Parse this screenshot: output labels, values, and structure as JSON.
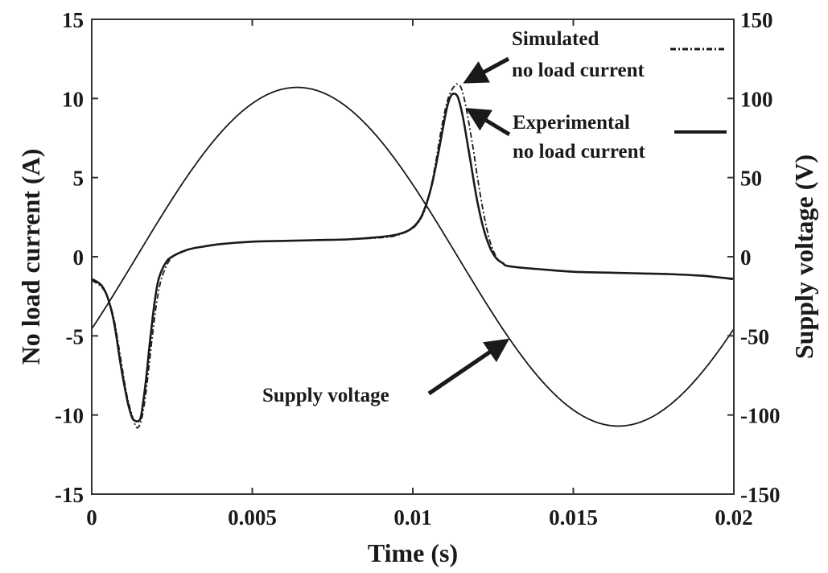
{
  "chart_data": {
    "type": "line",
    "title": "",
    "xlabel": "Time (s)",
    "ylabel_left": "No load current (A)",
    "ylabel_right": "Supply voltage (V)",
    "xlim": [
      0,
      0.02
    ],
    "ylim_left": [
      -15,
      15
    ],
    "ylim_right": [
      -150,
      150
    ],
    "grid": false,
    "x_ticks": [
      0,
      0.005,
      0.01,
      0.015,
      0.02
    ],
    "x_tick_labels": [
      "0",
      "0.005",
      "0.01",
      "0.015",
      "0.02"
    ],
    "y_left_ticks": [
      15,
      10,
      5,
      0,
      -5,
      -10,
      -15
    ],
    "y_left_tick_labels": [
      "15",
      "10",
      "5",
      "0",
      "-5",
      "-10",
      "-15"
    ],
    "y_right_ticks": [
      150,
      100,
      50,
      0,
      -50,
      -100,
      -150
    ],
    "y_right_tick_labels": [
      "150",
      "100",
      "50",
      "0",
      "-50",
      "-100",
      "-150"
    ],
    "legend": {
      "placement": "top-right",
      "entries": [
        {
          "label_line1": "Simulated",
          "label_line2": "no load current",
          "style": "dash-dot"
        },
        {
          "label_line1": "Experimental",
          "label_line2": "no load current",
          "style": "solid"
        }
      ]
    },
    "annotations": [
      {
        "text": "Supply voltage",
        "points_to": {
          "x": 0.013,
          "y_right": -52
        }
      }
    ],
    "series": [
      {
        "name": "Experimental no load current",
        "axis": "left",
        "style": "solid",
        "x": [
          0,
          0.0003,
          0.0005,
          0.0007,
          0.0009,
          0.0011,
          0.0012,
          0.0013,
          0.0015,
          0.0016,
          0.0017,
          0.0018,
          0.0019,
          0.002,
          0.0021,
          0.0023,
          0.0025,
          0.003,
          0.0035,
          0.004,
          0.005,
          0.006,
          0.007,
          0.008,
          0.009,
          0.0095,
          0.0099,
          0.0102,
          0.0104,
          0.0106,
          0.0108,
          0.011,
          0.0111,
          0.0112,
          0.0113,
          0.0114,
          0.0115,
          0.0116,
          0.0117,
          0.0118,
          0.012,
          0.0122,
          0.0124,
          0.0126,
          0.0128,
          0.013,
          0.014,
          0.015,
          0.016,
          0.017,
          0.018,
          0.019,
          0.0195,
          0.02
        ],
        "y": [
          -1.4,
          -1.8,
          -2.6,
          -4.2,
          -6.8,
          -9.0,
          -9.8,
          -10.3,
          -10.3,
          -9.2,
          -7.6,
          -5.6,
          -3.8,
          -2.3,
          -1.3,
          -0.4,
          0.0,
          0.45,
          0.65,
          0.8,
          0.95,
          1.0,
          1.05,
          1.1,
          1.25,
          1.4,
          1.7,
          2.3,
          3.2,
          4.6,
          6.6,
          8.8,
          9.7,
          10.2,
          10.3,
          10.1,
          9.4,
          8.4,
          7.2,
          6.0,
          3.6,
          1.8,
          0.6,
          -0.1,
          -0.4,
          -0.6,
          -0.8,
          -0.95,
          -1.0,
          -1.05,
          -1.1,
          -1.2,
          -1.3,
          -1.4
        ]
      },
      {
        "name": "Simulated no load current",
        "axis": "left",
        "style": "dash-dot",
        "x": [
          0,
          0.0003,
          0.0005,
          0.0007,
          0.0009,
          0.0011,
          0.0013,
          0.0014,
          0.0015,
          0.0016,
          0.0017,
          0.0018,
          0.0019,
          0.002,
          0.0021,
          0.0022,
          0.0024,
          0.0026,
          0.003,
          0.0035,
          0.004,
          0.005,
          0.006,
          0.007,
          0.008,
          0.009,
          0.0095,
          0.01,
          0.0103,
          0.0105,
          0.0107,
          0.0109,
          0.0111,
          0.0113,
          0.0114,
          0.0115,
          0.0116,
          0.0117,
          0.0118,
          0.0119,
          0.012,
          0.0122,
          0.0124,
          0.0126,
          0.0128,
          0.013,
          0.014,
          0.015,
          0.016,
          0.017,
          0.018,
          0.019,
          0.0195,
          0.02
        ],
        "y": [
          -1.5,
          -1.9,
          -2.6,
          -4.0,
          -6.4,
          -8.8,
          -10.3,
          -10.8,
          -10.6,
          -9.8,
          -8.4,
          -6.6,
          -4.8,
          -3.2,
          -2.0,
          -1.2,
          -0.3,
          0.1,
          0.45,
          0.65,
          0.8,
          0.95,
          1.0,
          1.05,
          1.1,
          1.2,
          1.35,
          1.8,
          2.6,
          3.8,
          5.8,
          8.2,
          10.0,
          10.8,
          10.9,
          10.7,
          10.0,
          9.0,
          7.8,
          6.6,
          5.2,
          2.8,
          1.0,
          0.0,
          -0.4,
          -0.6,
          -0.8,
          -0.95,
          -1.0,
          -1.05,
          -1.1,
          -1.2,
          -1.3,
          -1.45
        ]
      },
      {
        "name": "Supply voltage",
        "axis": "right",
        "style": "solid",
        "amplitude_V": 107,
        "frequency_Hz": 50,
        "phase_delay_s": 0.0014,
        "x": [
          0,
          0.001,
          0.002,
          0.003,
          0.004,
          0.005,
          0.0064,
          0.007,
          0.008,
          0.009,
          0.01,
          0.011,
          0.012,
          0.013,
          0.014,
          0.015,
          0.0164,
          0.017,
          0.018,
          0.019,
          0.02
        ],
        "y": [
          -46,
          -13,
          20,
          50,
          75,
          97,
          107,
          105,
          94,
          75,
          46,
          13,
          -20,
          -50,
          -75,
          -97,
          -107,
          -105,
          -94,
          -75,
          -46
        ]
      }
    ]
  }
}
